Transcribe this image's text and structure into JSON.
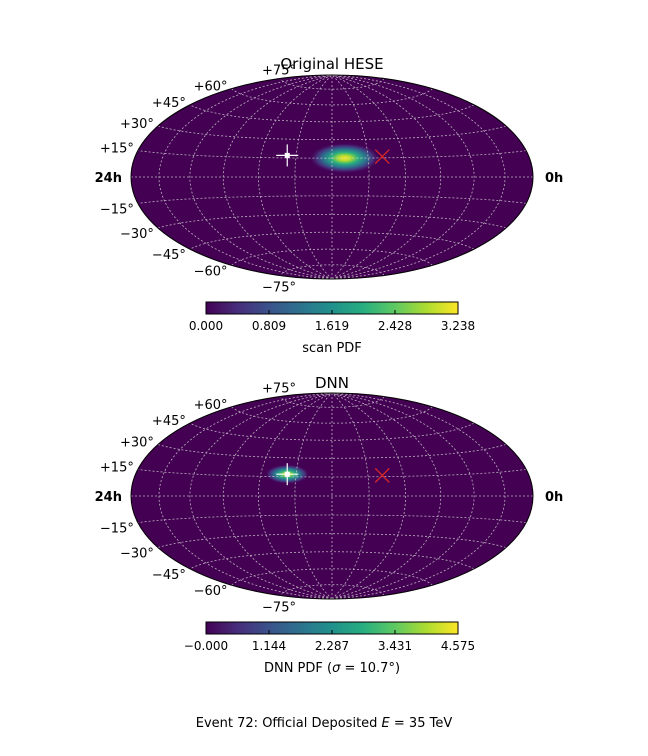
{
  "caption": {
    "prefix": "Event 72:  Official Deposited ",
    "var": "E",
    "suffix": " = 35 TeV"
  },
  "chart_data": [
    {
      "type": "heatmap",
      "projection": "hammer",
      "title": "Original HESE",
      "ra_labels": {
        "left": "24h",
        "right": "0h"
      },
      "dec_labels": [
        "+75°",
        "+60°",
        "+45°",
        "+30°",
        "+15°",
        "−15°",
        "−30°",
        "−45°",
        "−60°",
        "−75°"
      ],
      "dec_values": [
        75,
        60,
        45,
        30,
        15,
        -15,
        -30,
        -45,
        -60,
        -75
      ],
      "colormap": "viridis",
      "colorbar": {
        "label": "scan PDF",
        "ticks": [
          "0.000",
          "0.809",
          "1.619",
          "2.428",
          "3.238"
        ],
        "range": [
          0.0,
          3.238
        ]
      },
      "hotspot": {
        "ra_h": 11.3,
        "dec_deg": 15,
        "peak": 3.238,
        "spread_deg": 8
      },
      "markers": [
        {
          "type": "cross",
          "color": "#ffffff",
          "ra_h": 14.5,
          "dec_deg": 17
        },
        {
          "type": "x",
          "color": "#d62728",
          "ra_h": 9.2,
          "dec_deg": 16
        }
      ]
    },
    {
      "type": "heatmap",
      "projection": "hammer",
      "title": "DNN",
      "ra_labels": {
        "left": "24h",
        "right": "0h"
      },
      "dec_labels": [
        "+75°",
        "+60°",
        "+45°",
        "+30°",
        "+15°",
        "−15°",
        "−30°",
        "−45°",
        "−60°",
        "−75°"
      ],
      "dec_values": [
        75,
        60,
        45,
        30,
        15,
        -15,
        -30,
        -45,
        -60,
        -75
      ],
      "colormap": "viridis",
      "colorbar": {
        "label_prefix": "DNN PDF (",
        "label_var": "σ",
        "label_suffix": " = 10.7°)",
        "ticks": [
          "−0.000",
          "1.144",
          "2.287",
          "3.431",
          "4.575"
        ],
        "range": [
          0.0,
          4.575
        ]
      },
      "hotspot": {
        "ra_h": 14.5,
        "dec_deg": 17,
        "peak": 4.575,
        "spread_deg": 5
      },
      "markers": [
        {
          "type": "cross",
          "color": "#ffffff",
          "ra_h": 14.5,
          "dec_deg": 17
        },
        {
          "type": "x",
          "color": "#d62728",
          "ra_h": 9.2,
          "dec_deg": 16
        }
      ]
    }
  ]
}
